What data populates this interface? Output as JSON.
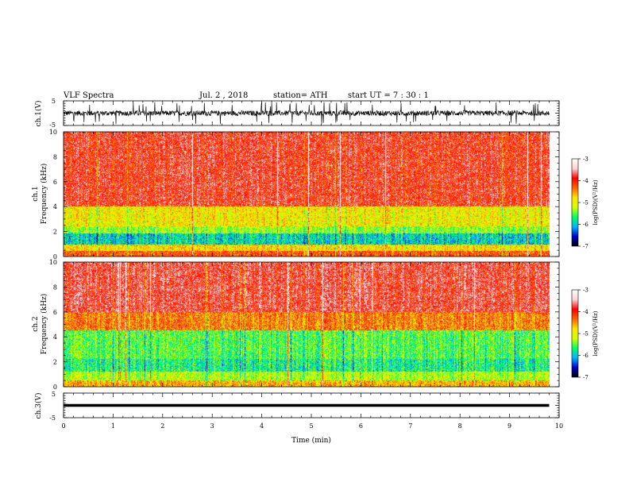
{
  "header": {
    "title": "VLF Spectra",
    "date": "Jul.  2  , 2018",
    "station": "station= ATH",
    "start": "start  UT  =   7  : 30 : 1"
  },
  "chart_data": [
    {
      "type": "line",
      "panel": "ch1-waveform",
      "ylabel": "ch.1(V)",
      "ylim": [
        -5,
        5
      ],
      "y_ticks": [
        "5",
        "-5"
      ],
      "x_range_min": [
        0,
        9.8
      ],
      "description_values": {
        "baseline_v": 0,
        "typical_amplitude_v": 1.5,
        "peak_v": 4.5
      }
    },
    {
      "type": "heatmap",
      "panel": "ch1-spectrogram",
      "ylabel": "ch.1\nFrequency  (kHz)",
      "ylabel_lines": [
        "ch.1",
        "Frequency  (kHz)"
      ],
      "ylim": [
        0,
        10
      ],
      "y_ticks": [
        "0",
        "2",
        "4",
        "6",
        "8",
        "10"
      ],
      "colorbar_label": "log(PSD)(V²/Hz)",
      "colorbar_ticks": [
        "-3",
        "-4",
        "-5",
        "-6",
        "-7"
      ],
      "colorbar_range": [
        -7,
        -3
      ],
      "bands_khz_logpsd": [
        {
          "f": [
            0,
            0.4
          ],
          "v": -4.2
        },
        {
          "f": [
            0.4,
            0.9
          ],
          "v": -4.8
        },
        {
          "f": [
            0.9,
            1.8
          ],
          "v": -5.9
        },
        {
          "f": [
            1.8,
            2.4
          ],
          "v": -5.3
        },
        {
          "f": [
            2.4,
            4.0
          ],
          "v": -4.9
        },
        {
          "f": [
            4.0,
            10.0
          ],
          "v": -3.9
        }
      ]
    },
    {
      "type": "heatmap",
      "panel": "ch2-spectrogram",
      "ylabel_lines": [
        "ch.2",
        "Frequency  (kHz)"
      ],
      "ylim": [
        0,
        10
      ],
      "y_ticks": [
        "0",
        "2",
        "4",
        "6",
        "8",
        "10"
      ],
      "colorbar_label": "log(PSD)(V²/Hz)",
      "colorbar_ticks": [
        "-3",
        "-4",
        "-5",
        "-6",
        "-7"
      ],
      "colorbar_range": [
        -7,
        -3
      ],
      "bands_khz_logpsd": [
        {
          "f": [
            0,
            0.5
          ],
          "v": -4.6
        },
        {
          "f": [
            0.5,
            1.2
          ],
          "v": -5.2
        },
        {
          "f": [
            1.2,
            2.2
          ],
          "v": -5.7
        },
        {
          "f": [
            2.2,
            4.5
          ],
          "v": -5.5
        },
        {
          "f": [
            4.5,
            6.0
          ],
          "v": -4.4
        },
        {
          "f": [
            6.0,
            10.0
          ],
          "v": -3.8
        }
      ]
    },
    {
      "type": "line",
      "panel": "ch3-waveform",
      "ylabel": "ch.3(V)",
      "ylim": [
        -5,
        5
      ],
      "y_ticks": [
        "5",
        "-5"
      ],
      "constant_value_v": 0,
      "xlabel": "Time  (min)",
      "xlim": [
        0,
        10
      ],
      "x_ticks": [
        "0",
        "1",
        "2",
        "3",
        "4",
        "5",
        "6",
        "7",
        "8",
        "9",
        "10"
      ]
    }
  ],
  "colors": {
    "ch1_trace": "#111111",
    "ch3_trace": "#000000",
    "colormap": [
      "#000000",
      "#0000c8",
      "#00b4ff",
      "#00ff64",
      "#d2ff00",
      "#ffe600",
      "#ff6400",
      "#ff0000",
      "#ffd2d2",
      "#ffffff"
    ]
  }
}
